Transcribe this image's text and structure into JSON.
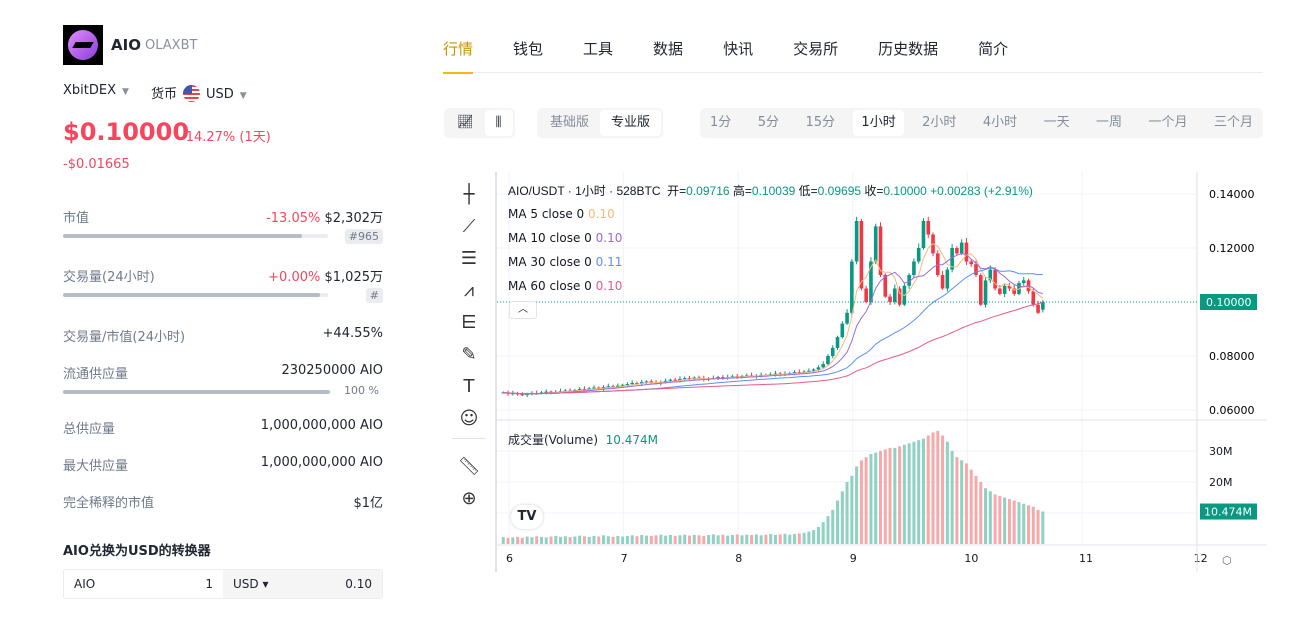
{
  "coin": {
    "symbol": "AIO",
    "name": "OLAXBT",
    "exchange": "XbitDEX",
    "currency_label": "货币",
    "currency": "USD",
    "price": "$0.10000",
    "change_pct": "-14.27% (1天)",
    "change_abs": "-$0.01665"
  },
  "stats": [
    {
      "label": "市值",
      "change": "-13.05%",
      "value": "$2,302万",
      "tag": "#965",
      "bar": 0.9
    },
    {
      "label": "交易量(24小时)",
      "change": "+0.00%",
      "value": "$1,025万",
      "tag": "#",
      "bar": 0.97
    },
    {
      "label": "交易量/市值(24小时)",
      "value": "+44.55%"
    },
    {
      "label": "流通供应量",
      "value": "230250000 AIO",
      "bar": 1.0,
      "bar_text": "100 %"
    },
    {
      "label": "总供应量",
      "value": "1,000,000,000 AIO"
    },
    {
      "label": "最大供应量",
      "value": "1,000,000,000 AIO"
    },
    {
      "label": "完全稀释的市值",
      "value": "$1亿"
    }
  ],
  "converter": {
    "title": "AIO兑换为USD的转换器",
    "from": "AIO",
    "from_amount": "1",
    "to": "USD ▾",
    "to_amount": "0.10"
  },
  "tabs": [
    "行情",
    "钱包",
    "工具",
    "数据",
    "快讯",
    "交易所",
    "历史数据",
    "简介"
  ],
  "modes": [
    "基础版",
    "专业版"
  ],
  "intervals": [
    "1分",
    "5分",
    "15分",
    "1小时",
    "2小时",
    "4小时",
    "一天",
    "一周",
    "一个月",
    "三个月"
  ],
  "active_interval": "1小时",
  "chart_legend": {
    "title": "AIO/USDT · 1小时 · 528BTC",
    "open_l": "开=",
    "open": "0.09716",
    "high_l": "高=",
    "high": "0.10039",
    "low_l": "低=",
    "low": "0.09695",
    "close_l": "收=",
    "close": "0.10000",
    "change": "+0.00283 (+2.91%)"
  },
  "ma": [
    {
      "label": "MA 5 close 0",
      "value": "0.10",
      "color": "#f7b97b",
      "period": 5
    },
    {
      "label": "MA 10 close 0",
      "value": "0.10",
      "color": "#9c6ade",
      "period": 10
    },
    {
      "label": "MA 30 close 0",
      "value": "0.11",
      "color": "#5b8ff9",
      "period": 30
    },
    {
      "label": "MA 60 close 0",
      "value": "0.10",
      "color": "#e8598a",
      "period": 60
    }
  ],
  "volume_legend": {
    "label": "成交量(Volume)",
    "value": "10.474M"
  },
  "colors": {
    "up": "#089981",
    "down": "#f23645",
    "accent": "#f0b90b"
  },
  "chart_data": {
    "type": "candlestick",
    "price_ticks": [
      "0.14000",
      "0.12000",
      "0.10000",
      "0.08000",
      "0.06000"
    ],
    "price_range": [
      0.06,
      0.14
    ],
    "last_price_label": "0.10000",
    "volume_ticks": [
      "30M",
      "20M"
    ],
    "last_volume_label": "10.474M",
    "x_ticks": [
      "6",
      "7",
      "8",
      "9",
      "10",
      "11",
      "12"
    ],
    "first_candle_day": 5.95,
    "last_open": 0.09716,
    "closes": [
      0.0665,
      0.066,
      0.0662,
      0.0658,
      0.0655,
      0.066,
      0.0663,
      0.0661,
      0.0665,
      0.0668,
      0.0664,
      0.0667,
      0.067,
      0.0672,
      0.0669,
      0.0674,
      0.0678,
      0.0676,
      0.068,
      0.0683,
      0.0679,
      0.0685,
      0.0688,
      0.0684,
      0.069,
      0.0693,
      0.0696,
      0.07,
      0.0697,
      0.0703,
      0.0706,
      0.0701,
      0.0698,
      0.0704,
      0.0708,
      0.0712,
      0.0709,
      0.0715,
      0.0718,
      0.0714,
      0.072,
      0.0717,
      0.0712,
      0.0716,
      0.0719,
      0.0722,
      0.0718,
      0.0721,
      0.0725,
      0.0723,
      0.0726,
      0.0728,
      0.0724,
      0.0727,
      0.073,
      0.0729,
      0.0732,
      0.0735,
      0.0731,
      0.0734,
      0.0737,
      0.074,
      0.0738,
      0.0742,
      0.0745,
      0.075,
      0.0758,
      0.077,
      0.08,
      0.083,
      0.087,
      0.092,
      0.096,
      0.115,
      0.13,
      0.105,
      0.1,
      0.115,
      0.128,
      0.11,
      0.102,
      0.1,
      0.105,
      0.099,
      0.106,
      0.11,
      0.115,
      0.12,
      0.13,
      0.125,
      0.118,
      0.11,
      0.105,
      0.112,
      0.12,
      0.118,
      0.122,
      0.115,
      0.114,
      0.11,
      0.099,
      0.108,
      0.112,
      0.105,
      0.103,
      0.106,
      0.105,
      0.103,
      0.107,
      0.108,
      0.104,
      0.099,
      0.096,
      0.1
    ],
    "volumes_m": [
      2.2,
      2.0,
      2.1,
      2.3,
      2.0,
      2.4,
      2.2,
      2.5,
      2.3,
      2.1,
      2.4,
      2.6,
      2.3,
      2.5,
      2.2,
      2.4,
      2.7,
      2.5,
      2.3,
      2.6,
      2.4,
      2.8,
      2.5,
      2.3,
      2.6,
      2.4,
      2.6,
      2.8,
      2.5,
      2.9,
      2.7,
      2.6,
      2.8,
      3.0,
      2.7,
      2.9,
      2.6,
      2.8,
      3.0,
      2.7,
      2.9,
      2.8,
      2.6,
      2.9,
      3.1,
      2.8,
      3.0,
      2.7,
      2.9,
      3.1,
      2.8,
      3.0,
      2.9,
      3.1,
      2.8,
      3.0,
      3.2,
      2.9,
      3.1,
      3.3,
      3.0,
      3.2,
      3.4,
      3.6,
      4.0,
      4.5,
      5.5,
      7,
      9,
      11,
      14,
      17,
      20,
      22,
      25,
      27,
      28,
      29,
      29.5,
      30,
      30.5,
      31,
      31,
      31.5,
      32,
      32.5,
      33,
      33.5,
      34,
      35,
      36,
      36.5,
      35,
      33,
      30,
      28,
      27,
      26,
      24,
      22,
      20,
      18,
      17,
      16,
      15.5,
      15,
      14.5,
      14,
      13.5,
      13,
      12.5,
      12,
      11,
      10.474
    ]
  }
}
